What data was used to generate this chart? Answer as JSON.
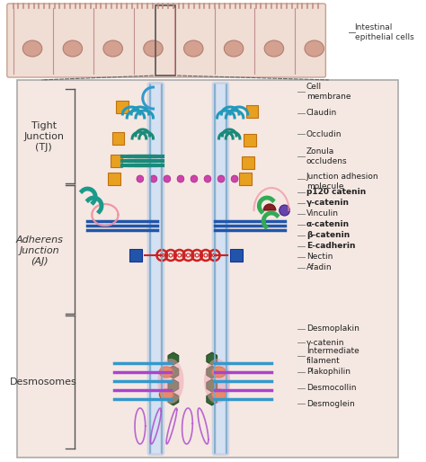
{
  "bg_color": "#f5e8e0",
  "cell_bg": "#f0ddd4",
  "border_color": "#888888",
  "membrane_color": "#b0c8e8",
  "membrane_inner": "#d0e4f4",
  "tight_junction_label": "Tight\nJunction\n(TJ)",
  "adherens_junction_label": "Adherens\nJunction\n(AJ)",
  "desmosomes_label": "Desmosomes",
  "right_labels_tj": [
    "Cell\nmembrane",
    "Claudin",
    "Occludin",
    "Zonula\noccludens",
    "Junction adhesion\nmolecule"
  ],
  "right_labels_aj": [
    "p120 catenin",
    "γ-catenin",
    "Vinculin",
    "α-catenin",
    "β-catenin",
    "E-cadherin",
    "Nectin",
    "Afadin"
  ],
  "right_labels_ds": [
    "Desmoplakin",
    "γ-catenin",
    "Intermediate\nfilament",
    "Plakophilin",
    "Desmocollin",
    "Desmoglein"
  ],
  "intestinal_label": "Intestinal\nepithelial cells",
  "claudin_color": "#2196a8",
  "occludin_color": "#1a8a96",
  "jam_color": "#cc44aa",
  "zo_color": "#1a8a96",
  "orange_color": "#e8a020",
  "green_color": "#3aaa50",
  "teal_color": "#1a9a8a",
  "blue_diamond_color": "#2255aa",
  "pink_color": "#f090a0",
  "purple_color": "#6644aa",
  "dark_red_color": "#882222",
  "desmo_purple": "#aa44cc",
  "desmo_blue": "#3399cc",
  "desmo_green": "#336633",
  "desmo_orange": "#dd7722"
}
